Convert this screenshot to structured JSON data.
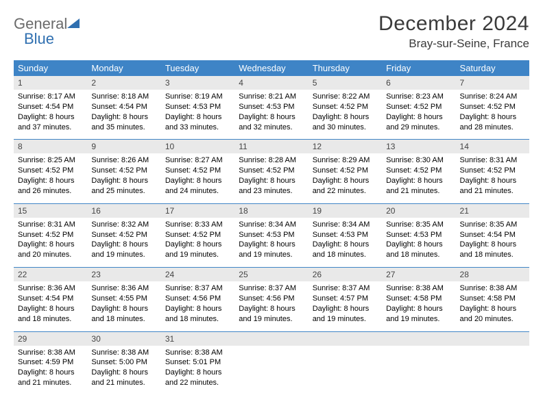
{
  "logo": {
    "general": "General",
    "blue": "Blue"
  },
  "title": "December 2024",
  "location": "Bray-sur-Seine, France",
  "colors": {
    "header_bg": "#3e84c6",
    "header_text": "#ffffff",
    "daynum_bg": "#e9e9e9",
    "border": "#3e84c6",
    "logo_gray": "#6a6a6a",
    "logo_blue": "#2f6fb0"
  },
  "day_headers": [
    "Sunday",
    "Monday",
    "Tuesday",
    "Wednesday",
    "Thursday",
    "Friday",
    "Saturday"
  ],
  "weeks": [
    [
      {
        "n": "1",
        "sr": "Sunrise: 8:17 AM",
        "ss": "Sunset: 4:54 PM",
        "dl1": "Daylight: 8 hours",
        "dl2": "and 37 minutes."
      },
      {
        "n": "2",
        "sr": "Sunrise: 8:18 AM",
        "ss": "Sunset: 4:54 PM",
        "dl1": "Daylight: 8 hours",
        "dl2": "and 35 minutes."
      },
      {
        "n": "3",
        "sr": "Sunrise: 8:19 AM",
        "ss": "Sunset: 4:53 PM",
        "dl1": "Daylight: 8 hours",
        "dl2": "and 33 minutes."
      },
      {
        "n": "4",
        "sr": "Sunrise: 8:21 AM",
        "ss": "Sunset: 4:53 PM",
        "dl1": "Daylight: 8 hours",
        "dl2": "and 32 minutes."
      },
      {
        "n": "5",
        "sr": "Sunrise: 8:22 AM",
        "ss": "Sunset: 4:52 PM",
        "dl1": "Daylight: 8 hours",
        "dl2": "and 30 minutes."
      },
      {
        "n": "6",
        "sr": "Sunrise: 8:23 AM",
        "ss": "Sunset: 4:52 PM",
        "dl1": "Daylight: 8 hours",
        "dl2": "and 29 minutes."
      },
      {
        "n": "7",
        "sr": "Sunrise: 8:24 AM",
        "ss": "Sunset: 4:52 PM",
        "dl1": "Daylight: 8 hours",
        "dl2": "and 28 minutes."
      }
    ],
    [
      {
        "n": "8",
        "sr": "Sunrise: 8:25 AM",
        "ss": "Sunset: 4:52 PM",
        "dl1": "Daylight: 8 hours",
        "dl2": "and 26 minutes."
      },
      {
        "n": "9",
        "sr": "Sunrise: 8:26 AM",
        "ss": "Sunset: 4:52 PM",
        "dl1": "Daylight: 8 hours",
        "dl2": "and 25 minutes."
      },
      {
        "n": "10",
        "sr": "Sunrise: 8:27 AM",
        "ss": "Sunset: 4:52 PM",
        "dl1": "Daylight: 8 hours",
        "dl2": "and 24 minutes."
      },
      {
        "n": "11",
        "sr": "Sunrise: 8:28 AM",
        "ss": "Sunset: 4:52 PM",
        "dl1": "Daylight: 8 hours",
        "dl2": "and 23 minutes."
      },
      {
        "n": "12",
        "sr": "Sunrise: 8:29 AM",
        "ss": "Sunset: 4:52 PM",
        "dl1": "Daylight: 8 hours",
        "dl2": "and 22 minutes."
      },
      {
        "n": "13",
        "sr": "Sunrise: 8:30 AM",
        "ss": "Sunset: 4:52 PM",
        "dl1": "Daylight: 8 hours",
        "dl2": "and 21 minutes."
      },
      {
        "n": "14",
        "sr": "Sunrise: 8:31 AM",
        "ss": "Sunset: 4:52 PM",
        "dl1": "Daylight: 8 hours",
        "dl2": "and 21 minutes."
      }
    ],
    [
      {
        "n": "15",
        "sr": "Sunrise: 8:31 AM",
        "ss": "Sunset: 4:52 PM",
        "dl1": "Daylight: 8 hours",
        "dl2": "and 20 minutes."
      },
      {
        "n": "16",
        "sr": "Sunrise: 8:32 AM",
        "ss": "Sunset: 4:52 PM",
        "dl1": "Daylight: 8 hours",
        "dl2": "and 19 minutes."
      },
      {
        "n": "17",
        "sr": "Sunrise: 8:33 AM",
        "ss": "Sunset: 4:52 PM",
        "dl1": "Daylight: 8 hours",
        "dl2": "and 19 minutes."
      },
      {
        "n": "18",
        "sr": "Sunrise: 8:34 AM",
        "ss": "Sunset: 4:53 PM",
        "dl1": "Daylight: 8 hours",
        "dl2": "and 19 minutes."
      },
      {
        "n": "19",
        "sr": "Sunrise: 8:34 AM",
        "ss": "Sunset: 4:53 PM",
        "dl1": "Daylight: 8 hours",
        "dl2": "and 18 minutes."
      },
      {
        "n": "20",
        "sr": "Sunrise: 8:35 AM",
        "ss": "Sunset: 4:53 PM",
        "dl1": "Daylight: 8 hours",
        "dl2": "and 18 minutes."
      },
      {
        "n": "21",
        "sr": "Sunrise: 8:35 AM",
        "ss": "Sunset: 4:54 PM",
        "dl1": "Daylight: 8 hours",
        "dl2": "and 18 minutes."
      }
    ],
    [
      {
        "n": "22",
        "sr": "Sunrise: 8:36 AM",
        "ss": "Sunset: 4:54 PM",
        "dl1": "Daylight: 8 hours",
        "dl2": "and 18 minutes."
      },
      {
        "n": "23",
        "sr": "Sunrise: 8:36 AM",
        "ss": "Sunset: 4:55 PM",
        "dl1": "Daylight: 8 hours",
        "dl2": "and 18 minutes."
      },
      {
        "n": "24",
        "sr": "Sunrise: 8:37 AM",
        "ss": "Sunset: 4:56 PM",
        "dl1": "Daylight: 8 hours",
        "dl2": "and 18 minutes."
      },
      {
        "n": "25",
        "sr": "Sunrise: 8:37 AM",
        "ss": "Sunset: 4:56 PM",
        "dl1": "Daylight: 8 hours",
        "dl2": "and 19 minutes."
      },
      {
        "n": "26",
        "sr": "Sunrise: 8:37 AM",
        "ss": "Sunset: 4:57 PM",
        "dl1": "Daylight: 8 hours",
        "dl2": "and 19 minutes."
      },
      {
        "n": "27",
        "sr": "Sunrise: 8:38 AM",
        "ss": "Sunset: 4:58 PM",
        "dl1": "Daylight: 8 hours",
        "dl2": "and 19 minutes."
      },
      {
        "n": "28",
        "sr": "Sunrise: 8:38 AM",
        "ss": "Sunset: 4:58 PM",
        "dl1": "Daylight: 8 hours",
        "dl2": "and 20 minutes."
      }
    ],
    [
      {
        "n": "29",
        "sr": "Sunrise: 8:38 AM",
        "ss": "Sunset: 4:59 PM",
        "dl1": "Daylight: 8 hours",
        "dl2": "and 21 minutes."
      },
      {
        "n": "30",
        "sr": "Sunrise: 8:38 AM",
        "ss": "Sunset: 5:00 PM",
        "dl1": "Daylight: 8 hours",
        "dl2": "and 21 minutes."
      },
      {
        "n": "31",
        "sr": "Sunrise: 8:38 AM",
        "ss": "Sunset: 5:01 PM",
        "dl1": "Daylight: 8 hours",
        "dl2": "and 22 minutes."
      },
      null,
      null,
      null,
      null
    ]
  ]
}
